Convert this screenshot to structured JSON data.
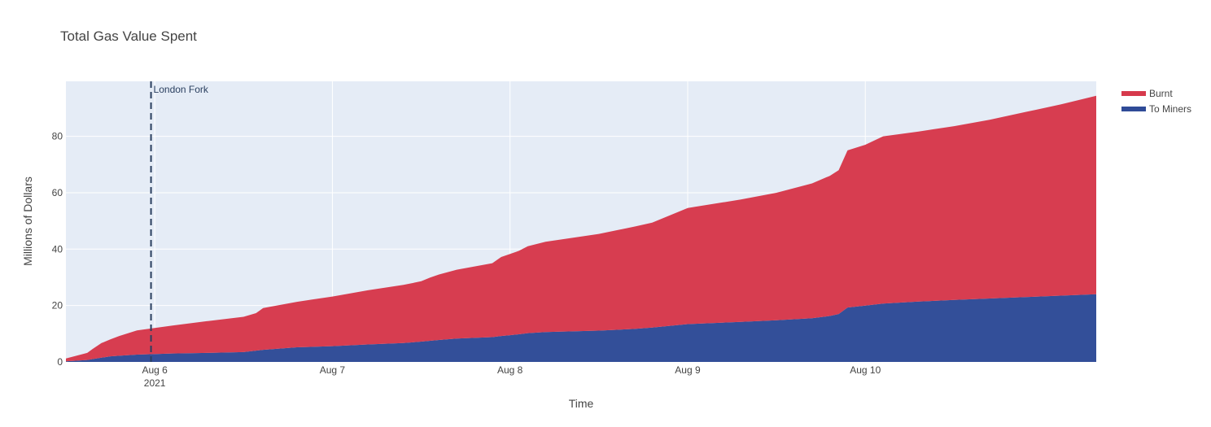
{
  "chart_data": {
    "type": "area",
    "stacked": true,
    "title": "Total Gas Value Spent",
    "xlabel": "Time",
    "ylabel": "Millions of Dollars",
    "x_tick_labels": [
      {
        "day": 0.5,
        "label": "Aug 6",
        "sub": "2021"
      },
      {
        "day": 1.5,
        "label": "Aug 7",
        "sub": ""
      },
      {
        "day": 2.5,
        "label": "Aug 8",
        "sub": ""
      },
      {
        "day": 3.5,
        "label": "Aug 9",
        "sub": ""
      },
      {
        "day": 4.5,
        "label": "Aug 10",
        "sub": ""
      }
    ],
    "y_ticks": [
      0,
      20,
      40,
      60,
      80
    ],
    "xlim": [
      0,
      5.8
    ],
    "ylim": [
      0,
      99.5
    ],
    "grid": true,
    "legend_position": "top-right",
    "annotation": {
      "label": "London Fork",
      "day": 0.479,
      "style": "dashed"
    },
    "x": [
      0,
      0.12,
      0.15,
      0.2,
      0.25,
      0.3,
      0.4,
      0.6,
      0.8,
      1.0,
      1.07,
      1.11,
      1.3,
      1.5,
      1.7,
      1.9,
      2.0,
      2.05,
      2.1,
      2.2,
      2.4,
      2.45,
      2.5,
      2.55,
      2.6,
      2.7,
      3.0,
      3.2,
      3.3,
      3.5,
      3.8,
      4.0,
      4.2,
      4.3,
      4.35,
      4.4,
      4.5,
      4.6,
      4.8,
      5.0,
      5.2,
      5.4,
      5.6,
      5.8
    ],
    "series": [
      {
        "name": "To Miners",
        "color": "#2f4b97",
        "values": [
          0.2,
          0.7,
          1.0,
          1.5,
          2.0,
          2.2,
          2.6,
          3.0,
          3.2,
          3.5,
          4.0,
          4.3,
          5.2,
          5.6,
          6.2,
          6.7,
          7.2,
          7.5,
          7.8,
          8.3,
          8.8,
          9.2,
          9.5,
          9.8,
          10.2,
          10.6,
          11.1,
          11.7,
          12.2,
          13.4,
          14.2,
          14.8,
          15.5,
          16.3,
          17.0,
          19.3,
          20.0,
          20.7,
          21.4,
          22.0,
          22.5,
          23.0,
          23.5,
          24.0
        ]
      },
      {
        "name": "Burnt",
        "color": "#d6394c",
        "values": [
          1.0,
          2.5,
          3.6,
          5.2,
          6.0,
          7.0,
          8.6,
          9.9,
          11.3,
          12.5,
          13.3,
          14.8,
          16.1,
          17.6,
          19.2,
          20.6,
          21.4,
          22.4,
          23.2,
          24.4,
          26.2,
          28.0,
          28.8,
          29.6,
          30.8,
          32.0,
          34.3,
          36.3,
          37.2,
          41.2,
          43.4,
          45.2,
          47.8,
          49.7,
          51.0,
          55.7,
          57.0,
          59.3,
          60.3,
          61.6,
          63.4,
          65.6,
          67.8,
          70.4
        ]
      }
    ],
    "legend_order": [
      "Burnt",
      "To Miners"
    ]
  }
}
